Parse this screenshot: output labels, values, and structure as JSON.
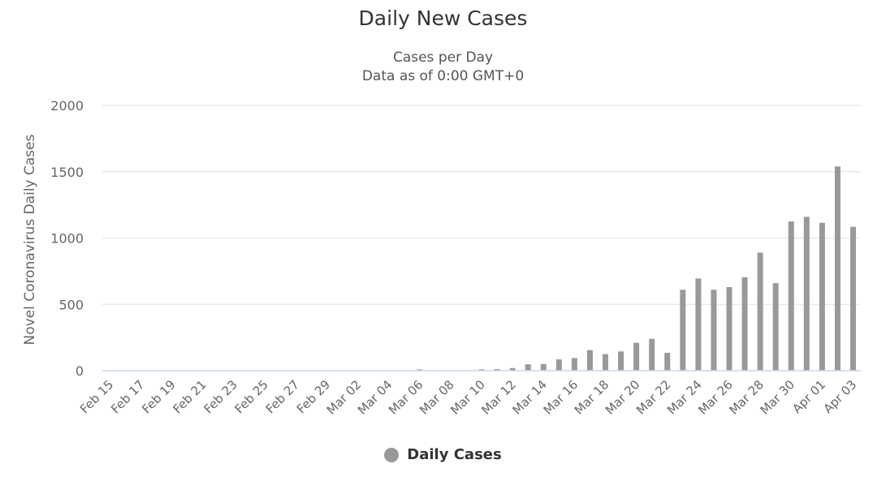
{
  "chart": {
    "title": "Daily New Cases",
    "subtitle_line1": "Cases per Day",
    "subtitle_line2": "Data as of 0:00 GMT+0"
  },
  "colors": {
    "bar": "#999999",
    "grid": "#e6e6e6",
    "axis_line": "#ccd6eb",
    "tick_label": "#666666"
  },
  "chart_data": {
    "type": "bar",
    "title": "Daily New Cases",
    "subtitle": "Cases per Day / Data as of 0:00 GMT+0",
    "xlabel": "",
    "ylabel": "Novel Coronavirus Daily Cases",
    "ylim": [
      0,
      2000
    ],
    "yticks": [
      0,
      500,
      1000,
      1500,
      2000
    ],
    "grid": true,
    "legend_position": "bottom-center",
    "x_tick_labels": [
      "Feb 15",
      "Feb 17",
      "Feb 19",
      "Feb 21",
      "Feb 23",
      "Feb 25",
      "Feb 27",
      "Feb 29",
      "Mar 02",
      "Mar 04",
      "Mar 06",
      "Mar 08",
      "Mar 10",
      "Mar 12",
      "Mar 14",
      "Mar 16",
      "Mar 18",
      "Mar 20",
      "Mar 22",
      "Mar 24",
      "Mar 26",
      "Mar 28",
      "Mar 30",
      "Apr 01",
      "Apr 03"
    ],
    "categories": [
      "Feb 15",
      "Feb 16",
      "Feb 17",
      "Feb 18",
      "Feb 19",
      "Feb 20",
      "Feb 21",
      "Feb 22",
      "Feb 23",
      "Feb 24",
      "Feb 25",
      "Feb 26",
      "Feb 27",
      "Feb 28",
      "Feb 29",
      "Mar 01",
      "Mar 02",
      "Mar 03",
      "Mar 04",
      "Mar 05",
      "Mar 06",
      "Mar 07",
      "Mar 08",
      "Mar 09",
      "Mar 10",
      "Mar 11",
      "Mar 12",
      "Mar 13",
      "Mar 14",
      "Mar 15",
      "Mar 16",
      "Mar 17",
      "Mar 18",
      "Mar 19",
      "Mar 20",
      "Mar 21",
      "Mar 22",
      "Mar 23",
      "Mar 24",
      "Mar 25",
      "Mar 26",
      "Mar 27",
      "Mar 28",
      "Mar 29",
      "Mar 30",
      "Mar 31",
      "Apr 01",
      "Apr 02",
      "Apr 03"
    ],
    "series": [
      {
        "name": "Daily Cases",
        "values": [
          0,
          0,
          0,
          0,
          0,
          0,
          0,
          0,
          0,
          0,
          0,
          0,
          0,
          0,
          0,
          0,
          0,
          0,
          0,
          0,
          10,
          0,
          0,
          0,
          10,
          12,
          20,
          48,
          50,
          85,
          95,
          155,
          125,
          145,
          210,
          240,
          135,
          610,
          695,
          610,
          630,
          705,
          890,
          660,
          1125,
          1160,
          1115,
          1540,
          1085
        ]
      }
    ]
  }
}
